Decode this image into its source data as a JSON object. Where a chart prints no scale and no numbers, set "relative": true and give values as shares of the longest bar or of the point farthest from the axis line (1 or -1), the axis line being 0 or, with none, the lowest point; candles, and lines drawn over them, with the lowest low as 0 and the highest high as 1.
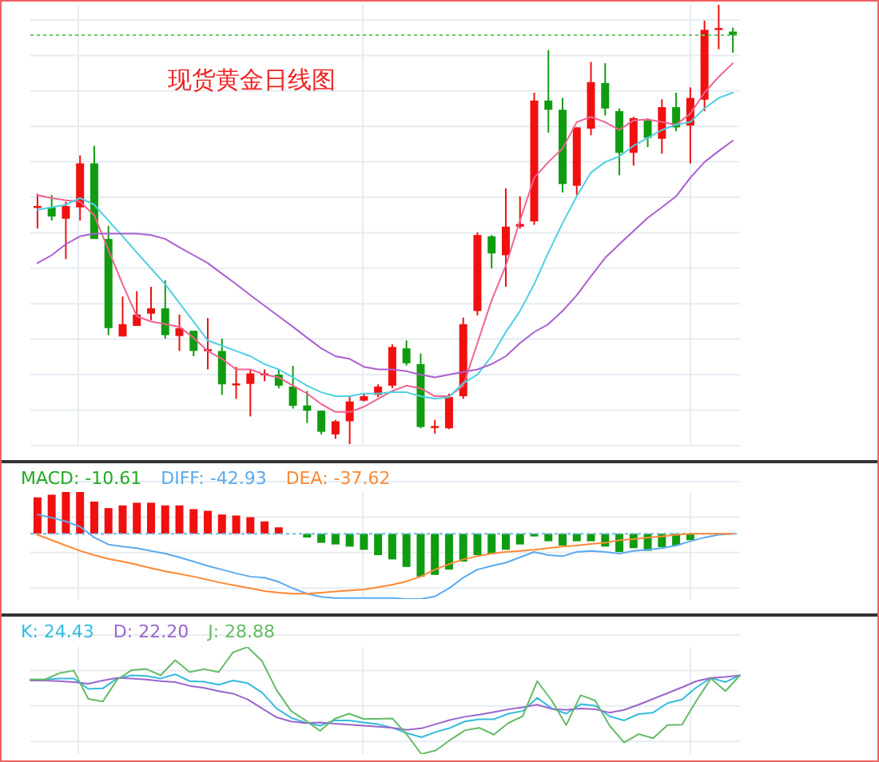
{
  "chart_data": [
    {
      "type": "candlestick",
      "title": "现货黄金日线图",
      "relative": true,
      "grid": true,
      "categories": [
        null,
        null,
        null,
        null,
        null,
        null,
        null,
        null,
        null,
        null,
        null,
        null,
        null,
        null,
        null,
        null,
        null,
        null,
        null,
        null,
        null,
        null,
        null,
        null,
        null,
        null,
        null,
        null,
        null,
        null,
        null,
        null,
        null,
        null,
        null,
        null,
        null,
        null,
        null,
        null,
        null,
        null,
        null,
        null,
        null,
        null,
        null,
        null,
        null,
        null
      ],
      "ohlc": [
        [
          0.539,
          0.57,
          0.491,
          0.542
        ],
        [
          0.539,
          0.567,
          0.509,
          0.518
        ],
        [
          0.513,
          0.552,
          0.421,
          0.542
        ],
        [
          0.539,
          0.657,
          0.509,
          0.639
        ],
        [
          0.639,
          0.679,
          0.467,
          0.467
        ],
        [
          0.467,
          0.497,
          0.248,
          0.264
        ],
        [
          0.245,
          0.336,
          0.245,
          0.273
        ],
        [
          0.269,
          0.348,
          0.269,
          0.295
        ],
        [
          0.297,
          0.358,
          0.282,
          0.309
        ],
        [
          0.309,
          0.373,
          0.24,
          0.248
        ],
        [
          0.246,
          0.295,
          0.212,
          0.264
        ],
        [
          0.258,
          0.258,
          0.2,
          0.212
        ],
        [
          0.212,
          0.287,
          0.17,
          0.216
        ],
        [
          0.212,
          0.24,
          0.112,
          0.136
        ],
        [
          0.136,
          0.176,
          0.103,
          0.138
        ],
        [
          0.137,
          0.17,
          0.063,
          0.161
        ],
        [
          0.158,
          0.17,
          0.143,
          0.161
        ],
        [
          0.158,
          0.17,
          0.127,
          0.133
        ],
        [
          0.131,
          0.178,
          0.081,
          0.087
        ],
        [
          0.088,
          0.121,
          0.048,
          0.076
        ],
        [
          0.076,
          0.076,
          0.022,
          0.028
        ],
        [
          0.022,
          0.055,
          0.012,
          0.052
        ],
        [
          0.052,
          0.109,
          0,
          0.097
        ],
        [
          0.099,
          0.115,
          0.097,
          0.109
        ],
        [
          0.112,
          0.136,
          0.107,
          0.131
        ],
        [
          0.133,
          0.227,
          0.127,
          0.221
        ],
        [
          0.218,
          0.236,
          0.179,
          0.184
        ],
        [
          0.182,
          0.206,
          0.036,
          0.039
        ],
        [
          0.039,
          0.055,
          0.024,
          0.041
        ],
        [
          0.036,
          0.115,
          0.034,
          0.107
        ],
        [
          0.109,
          0.288,
          0.103,
          0.273
        ],
        [
          0.303,
          0.482,
          0.293,
          0.476
        ],
        [
          0.473,
          0.476,
          0.4,
          0.434
        ],
        [
          0.43,
          0.582,
          0.358,
          0.495
        ],
        [
          0.495,
          0.564,
          0.491,
          0.501
        ],
        [
          0.507,
          0.8,
          0.499,
          0.782
        ],
        [
          0.782,
          0.897,
          0.709,
          0.761
        ],
        [
          0.761,
          0.788,
          0.573,
          0.592
        ],
        [
          0.588,
          0.721,
          0.567,
          0.721
        ],
        [
          0.718,
          0.87,
          0.703,
          0.824
        ],
        [
          0.822,
          0.867,
          0.748,
          0.764
        ],
        [
          0.758,
          0.764,
          0.612,
          0.663
        ],
        [
          0.663,
          0.745,
          0.634,
          0.742
        ],
        [
          0.737,
          0.742,
          0.676,
          0.697
        ],
        [
          0.695,
          0.785,
          0.661,
          0.767
        ],
        [
          0.767,
          0.8,
          0.712,
          0.721
        ],
        [
          0.725,
          0.812,
          0.639,
          0.788
        ],
        [
          0.784,
          0.964,
          0.758,
          0.943
        ],
        [
          0.943,
          1,
          0.899,
          0.947
        ],
        [
          0.939,
          0.948,
          0.891,
          0.931
        ]
      ],
      "colors": [
        "#f01010",
        "#109c10",
        "#f01010",
        "#f01010",
        "#109c10",
        "#109c10",
        "#f01010",
        "#f01010",
        "#f01010",
        "#109c10",
        "#f01010",
        "#109c10",
        "#f01010",
        "#109c10",
        "#f01010",
        "#f01010",
        "#f01010",
        "#109c10",
        "#109c10",
        "#109c10",
        "#109c10",
        "#f01010",
        "#f01010",
        "#f01010",
        "#f01010",
        "#f01010",
        "#109c10",
        "#109c10",
        "#f01010",
        "#f01010",
        "#f01010",
        "#f01010",
        "#109c10",
        "#f01010",
        "#f01010",
        "#f01010",
        "#109c10",
        "#109c10",
        "#f01010",
        "#f01010",
        "#109c10",
        "#109c10",
        "#f01010",
        "#109c10",
        "#f01010",
        "#109c10",
        "#f01010",
        "#f01010",
        "#f01010",
        "#109c10"
      ],
      "series": [
        {
          "type": "line",
          "color": "#f06292",
          "values": [
            0.567,
            0.56,
            0.555,
            0.552,
            0.521,
            0.442,
            0.364,
            0.291,
            0.279,
            0.273,
            0.267,
            0.242,
            0.212,
            0.194,
            0.17,
            0.17,
            0.158,
            0.152,
            0.133,
            0.115,
            0.091,
            0.073,
            0.073,
            0.085,
            0.103,
            0.121,
            0.133,
            0.127,
            0.109,
            0.109,
            0.133,
            0.23,
            0.327,
            0.406,
            0.509,
            0.606,
            0.642,
            0.673,
            0.733,
            0.745,
            0.733,
            0.715,
            0.737,
            0.739,
            0.733,
            0.727,
            0.752,
            0.8,
            0.836,
            0.867
          ]
        },
        {
          "type": "line",
          "color": "#4dd0e1",
          "values": [
            0.533,
            0.539,
            0.545,
            0.56,
            0.545,
            0.509,
            0.473,
            0.436,
            0.4,
            0.364,
            0.321,
            0.279,
            0.236,
            0.224,
            0.212,
            0.2,
            0.182,
            0.17,
            0.152,
            0.133,
            0.118,
            0.109,
            0.109,
            0.115,
            0.115,
            0.118,
            0.118,
            0.109,
            0.103,
            0.107,
            0.139,
            0.158,
            0.2,
            0.255,
            0.303,
            0.364,
            0.436,
            0.503,
            0.564,
            0.618,
            0.642,
            0.655,
            0.679,
            0.697,
            0.715,
            0.727,
            0.733,
            0.764,
            0.788,
            0.8
          ]
        },
        {
          "type": "line",
          "color": "#ab5fd0",
          "values": [
            0.412,
            0.43,
            0.455,
            0.473,
            0.479,
            0.479,
            0.479,
            0.479,
            0.476,
            0.467,
            0.448,
            0.43,
            0.412,
            0.388,
            0.364,
            0.339,
            0.315,
            0.291,
            0.267,
            0.242,
            0.218,
            0.2,
            0.194,
            0.176,
            0.17,
            0.17,
            0.166,
            0.158,
            0.152,
            0.158,
            0.164,
            0.17,
            0.182,
            0.2,
            0.23,
            0.255,
            0.273,
            0.303,
            0.339,
            0.382,
            0.424,
            0.455,
            0.485,
            0.515,
            0.539,
            0.564,
            0.606,
            0.642,
            0.667,
            0.691
          ]
        }
      ],
      "ref_lines": [
        {
          "axis": "y",
          "value": 0.931,
          "color": "#66cc66",
          "line_style": "dotted"
        }
      ]
    },
    {
      "type": "bar",
      "relative": true,
      "grid": true,
      "legend": "top left",
      "categories": [
        null,
        null,
        null,
        null,
        null,
        null,
        null,
        null,
        null,
        null,
        null,
        null,
        null,
        null,
        null,
        null,
        null,
        null,
        null,
        null,
        null,
        null,
        null,
        null,
        null,
        null,
        null,
        null,
        null,
        null,
        null,
        null,
        null,
        null,
        null,
        null,
        null,
        null,
        null,
        null,
        null,
        null,
        null,
        null,
        null,
        null,
        null,
        null,
        null,
        null
      ],
      "series": [
        {
          "type": "bar",
          "name": "MACD: -10.61",
          "color": "#22aa22",
          "values": [
            0.557,
            0.598,
            0.639,
            0.639,
            0.492,
            0.393,
            0.434,
            0.475,
            0.475,
            0.434,
            0.434,
            0.377,
            0.352,
            0.295,
            0.279,
            0.254,
            0.189,
            0.098,
            null,
            -0.057,
            -0.139,
            -0.164,
            -0.197,
            -0.246,
            -0.328,
            -0.393,
            -0.508,
            -0.656,
            -0.631,
            -0.549,
            -0.426,
            -0.328,
            -0.303,
            -0.246,
            -0.164,
            -0.041,
            -0.115,
            -0.18,
            -0.115,
            -0.115,
            -0.197,
            -0.279,
            -0.221,
            -0.262,
            -0.205,
            -0.18,
            -0.098,
            null,
            null,
            null
          ],
          "colors": [
            "#f01010",
            "#f01010",
            "#f01010",
            "#f01010",
            "#f01010",
            "#f01010",
            "#f01010",
            "#f01010",
            "#f01010",
            "#f01010",
            "#f01010",
            "#f01010",
            "#f01010",
            "#f01010",
            "#f01010",
            "#f01010",
            "#f01010",
            "#f01010",
            "#f01010",
            "#109c10",
            "#109c10",
            "#109c10",
            "#109c10",
            "#109c10",
            "#109c10",
            "#109c10",
            "#109c10",
            "#109c10",
            "#109c10",
            "#109c10",
            "#109c10",
            "#109c10",
            "#109c10",
            "#109c10",
            "#109c10",
            "#109c10",
            "#109c10",
            "#109c10",
            "#109c10",
            "#109c10",
            "#109c10",
            "#109c10",
            "#109c10",
            "#109c10",
            "#109c10",
            "#109c10",
            "#109c10",
            null,
            null,
            null
          ]
        },
        {
          "type": "line",
          "name": "DIFF: -42.93",
          "color": "#5aaaee",
          "values": [
            0.295,
            0.246,
            0.189,
            0.107,
            -0.057,
            -0.164,
            -0.197,
            -0.221,
            -0.262,
            -0.303,
            -0.361,
            -0.426,
            -0.492,
            -0.549,
            -0.607,
            -0.656,
            -0.672,
            -0.738,
            -0.836,
            -0.918,
            -0.967,
            -0.984,
            -0.984,
            -0.984,
            -0.984,
            -0.984,
            -1,
            -1,
            -0.959,
            -0.836,
            -0.672,
            -0.549,
            -0.492,
            -0.443,
            -0.361,
            -0.279,
            -0.328,
            -0.344,
            -0.279,
            -0.262,
            -0.279,
            -0.303,
            -0.262,
            -0.246,
            -0.221,
            -0.18,
            -0.115,
            -0.057,
            -0.016,
            0
          ]
        },
        {
          "type": "line",
          "name": "DEA: -37.62",
          "color": "#ff8833",
          "values": [
            -0.016,
            -0.098,
            -0.18,
            -0.262,
            -0.328,
            -0.385,
            -0.426,
            -0.475,
            -0.525,
            -0.574,
            -0.615,
            -0.656,
            -0.705,
            -0.754,
            -0.795,
            -0.836,
            -0.877,
            -0.902,
            -0.918,
            -0.918,
            -0.902,
            -0.885,
            -0.869,
            -0.852,
            -0.82,
            -0.779,
            -0.73,
            -0.656,
            -0.549,
            -0.467,
            -0.393,
            -0.344,
            -0.303,
            -0.279,
            -0.262,
            -0.246,
            -0.221,
            -0.197,
            -0.18,
            -0.156,
            -0.139,
            -0.098,
            -0.082,
            -0.057,
            -0.041,
            -0.016,
            0,
            0,
            0,
            0
          ]
        }
      ],
      "ref_lines": [
        {
          "axis": "y",
          "value": 0,
          "color": "#66bbee",
          "line_style": "dotted"
        }
      ]
    },
    {
      "type": "line",
      "relative": true,
      "grid": true,
      "legend": "top left",
      "categories": [
        null,
        null,
        null,
        null,
        null,
        null,
        null,
        null,
        null,
        null,
        null,
        null,
        null,
        null,
        null,
        null,
        null,
        null,
        null,
        null,
        null,
        null,
        null,
        null,
        null,
        null,
        null,
        null,
        null,
        null,
        null,
        null,
        null,
        null,
        null,
        null,
        null,
        null,
        null,
        null,
        null,
        null,
        null,
        null,
        null,
        null,
        null,
        null,
        null,
        null
      ],
      "series": [
        {
          "name": "K: 24.43",
          "color": "#33bbdd",
          "values": [
            0.696,
            0.696,
            0.706,
            0.706,
            0.608,
            0.613,
            0.706,
            0.735,
            0.73,
            0.706,
            0.745,
            0.681,
            0.676,
            0.647,
            0.686,
            0.662,
            0.574,
            0.426,
            0.338,
            0.294,
            0.265,
            0.314,
            0.314,
            0.294,
            0.279,
            0.245,
            0.196,
            0.157,
            0.206,
            0.245,
            0.304,
            0.324,
            0.324,
            0.377,
            0.402,
            0.525,
            0.426,
            0.377,
            0.466,
            0.451,
            0.353,
            0.314,
            0.373,
            0.387,
            0.476,
            0.51,
            0.623,
            0.711,
            0.672,
            0.735
          ]
        },
        {
          "name": "D: 22.20",
          "color": "#9966cc",
          "values": [
            0.686,
            0.686,
            0.681,
            0.672,
            0.657,
            0.686,
            0.711,
            0.706,
            0.696,
            0.681,
            0.672,
            0.637,
            0.618,
            0.588,
            0.564,
            0.51,
            0.426,
            0.343,
            0.304,
            0.289,
            0.294,
            0.284,
            0.275,
            0.265,
            0.255,
            0.245,
            0.225,
            0.24,
            0.279,
            0.319,
            0.348,
            0.368,
            0.392,
            0.417,
            0.436,
            0.461,
            0.422,
            0.412,
            0.426,
            0.417,
            0.387,
            0.412,
            0.461,
            0.515,
            0.569,
            0.623,
            0.681,
            0.711,
            0.721,
            0.735
          ]
        },
        {
          "name": "J: 28.88",
          "color": "#66bb66",
          "values": [
            0.696,
            0.696,
            0.755,
            0.779,
            0.515,
            0.49,
            0.696,
            0.784,
            0.794,
            0.735,
            0.877,
            0.765,
            0.794,
            0.765,
            0.951,
            1,
            0.868,
            0.598,
            0.402,
            0.314,
            0.216,
            0.328,
            0.377,
            0.328,
            0.328,
            0.333,
            0.181,
            0,
            0.034,
            0.132,
            0.221,
            0.245,
            0.181,
            0.289,
            0.353,
            0.681,
            0.5,
            0.27,
            0.549,
            0.5,
            0.265,
            0.108,
            0.186,
            0.147,
            0.27,
            0.275,
            0.5,
            0.706,
            0.588,
            0.735
          ]
        }
      ]
    }
  ]
}
